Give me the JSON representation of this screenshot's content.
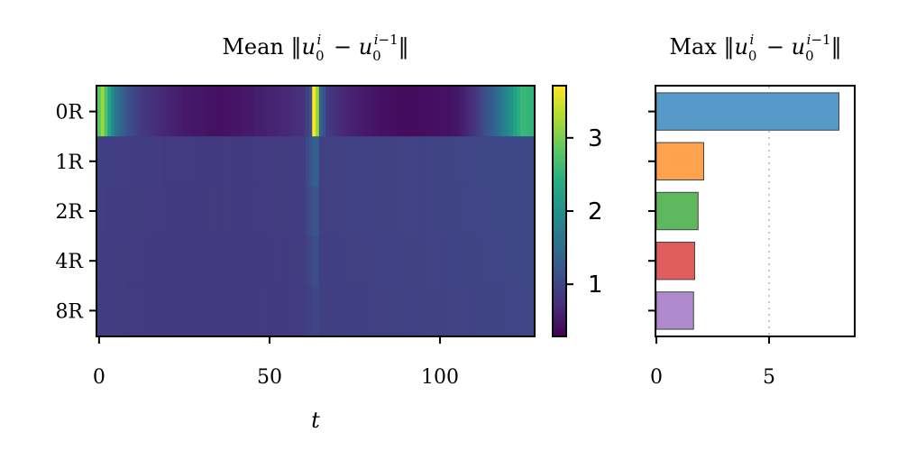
{
  "chart_data": [
    {
      "type": "heatmap",
      "title": "Mean ‖u_0^i − u_0^{i−1}‖",
      "rows": [
        "0R",
        "1R",
        "2R",
        "4R",
        "8R"
      ],
      "xlabel": "t",
      "xlim": [
        0,
        127
      ],
      "xticks": [
        0,
        50,
        100
      ],
      "colormap": "viridis",
      "colorbar": {
        "range": [
          0.3,
          3.7
        ],
        "ticks": [
          1,
          2,
          3
        ]
      },
      "profiles": [
        {
          "row": "0R",
          "t": [
            0,
            1,
            3,
            5,
            8,
            12,
            18,
            25,
            35,
            45,
            55,
            60,
            62,
            63,
            64,
            65,
            67,
            70,
            75,
            80,
            90,
            100,
            105,
            110,
            115,
            120,
            124,
            127
          ],
          "v": [
            2.8,
            3.2,
            2.3,
            1.6,
            1.2,
            0.9,
            0.7,
            0.55,
            0.45,
            0.55,
            0.7,
            0.8,
            1.1,
            3.7,
            3.2,
            1.4,
            0.9,
            0.75,
            0.6,
            0.5,
            0.4,
            0.45,
            0.5,
            0.8,
            1.3,
            1.9,
            2.6,
            2.5
          ]
        },
        {
          "row": "1R",
          "t": [
            0,
            20,
            40,
            60,
            63,
            64,
            65,
            80,
            100,
            127
          ],
          "v": [
            0.95,
            0.9,
            0.88,
            0.92,
            1.35,
            1.35,
            0.95,
            0.97,
            1.0,
            1.05
          ]
        },
        {
          "row": "2R",
          "t": [
            0,
            20,
            40,
            60,
            63,
            64,
            65,
            80,
            100,
            127
          ],
          "v": [
            0.93,
            0.89,
            0.88,
            0.92,
            1.2,
            1.2,
            0.95,
            0.97,
            1.0,
            1.04
          ]
        },
        {
          "row": "4R",
          "t": [
            0,
            20,
            40,
            60,
            63,
            64,
            65,
            80,
            100,
            127
          ],
          "v": [
            0.92,
            0.88,
            0.87,
            0.91,
            1.1,
            1.1,
            0.94,
            0.96,
            0.99,
            1.03
          ]
        },
        {
          "row": "8R",
          "t": [
            0,
            20,
            40,
            60,
            63,
            64,
            65,
            80,
            100,
            127
          ],
          "v": [
            0.92,
            0.88,
            0.87,
            0.9,
            1.02,
            1.02,
            0.93,
            0.95,
            0.98,
            1.02
          ]
        }
      ]
    },
    {
      "type": "bar",
      "orientation": "horizontal",
      "title": "Max ‖u_0^i − u_0^{i−1}‖",
      "categories": [
        "0R",
        "1R",
        "2R",
        "4R",
        "8R"
      ],
      "values": [
        8.1,
        2.1,
        1.85,
        1.7,
        1.65
      ],
      "colors": [
        "#5599c8",
        "#ffa24d",
        "#5eb95e",
        "#e05d5d",
        "#ae8acc"
      ],
      "xlim": [
        0,
        8.8
      ],
      "xticks": [
        0,
        5
      ],
      "reference_line": 5
    }
  ]
}
